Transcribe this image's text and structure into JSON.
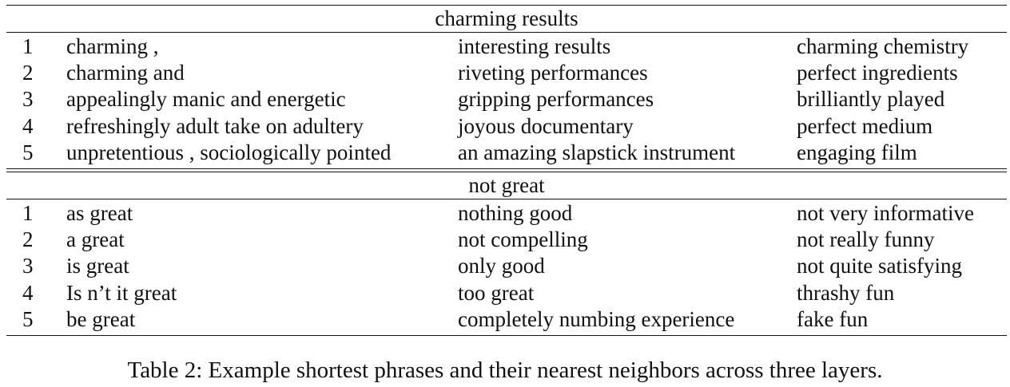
{
  "sections": [
    {
      "title": "charming results",
      "rows": [
        {
          "rank": "1",
          "a": "charming ,",
          "b": "interesting results",
          "c": "charming chemistry"
        },
        {
          "rank": "2",
          "a": "charming and",
          "b": "riveting performances",
          "c": "perfect ingredients"
        },
        {
          "rank": "3",
          "a": "appealingly manic and energetic",
          "b": "gripping performances",
          "c": "brilliantly played"
        },
        {
          "rank": "4",
          "a": "refreshingly adult take on adultery",
          "b": "joyous documentary",
          "c": "perfect medium"
        },
        {
          "rank": "5",
          "a": "unpretentious , sociologically pointed",
          "b": "an amazing slapstick instrument",
          "c": "engaging film"
        }
      ]
    },
    {
      "title": "not great",
      "rows": [
        {
          "rank": "1",
          "a": "as great",
          "b": "nothing good",
          "c": "not very informative"
        },
        {
          "rank": "2",
          "a": "a great",
          "b": "not compelling",
          "c": "not really funny"
        },
        {
          "rank": "3",
          "a": "is great",
          "b": "only good",
          "c": "not quite satisfying"
        },
        {
          "rank": "4",
          "a": "Is n’t it great",
          "b": "too great",
          "c": "thrashy fun"
        },
        {
          "rank": "5",
          "a": "be great",
          "b": "completely numbing experience",
          "c": "fake fun"
        }
      ]
    }
  ],
  "caption": "Table 2: Example shortest phrases and their nearest neighbors across three layers."
}
